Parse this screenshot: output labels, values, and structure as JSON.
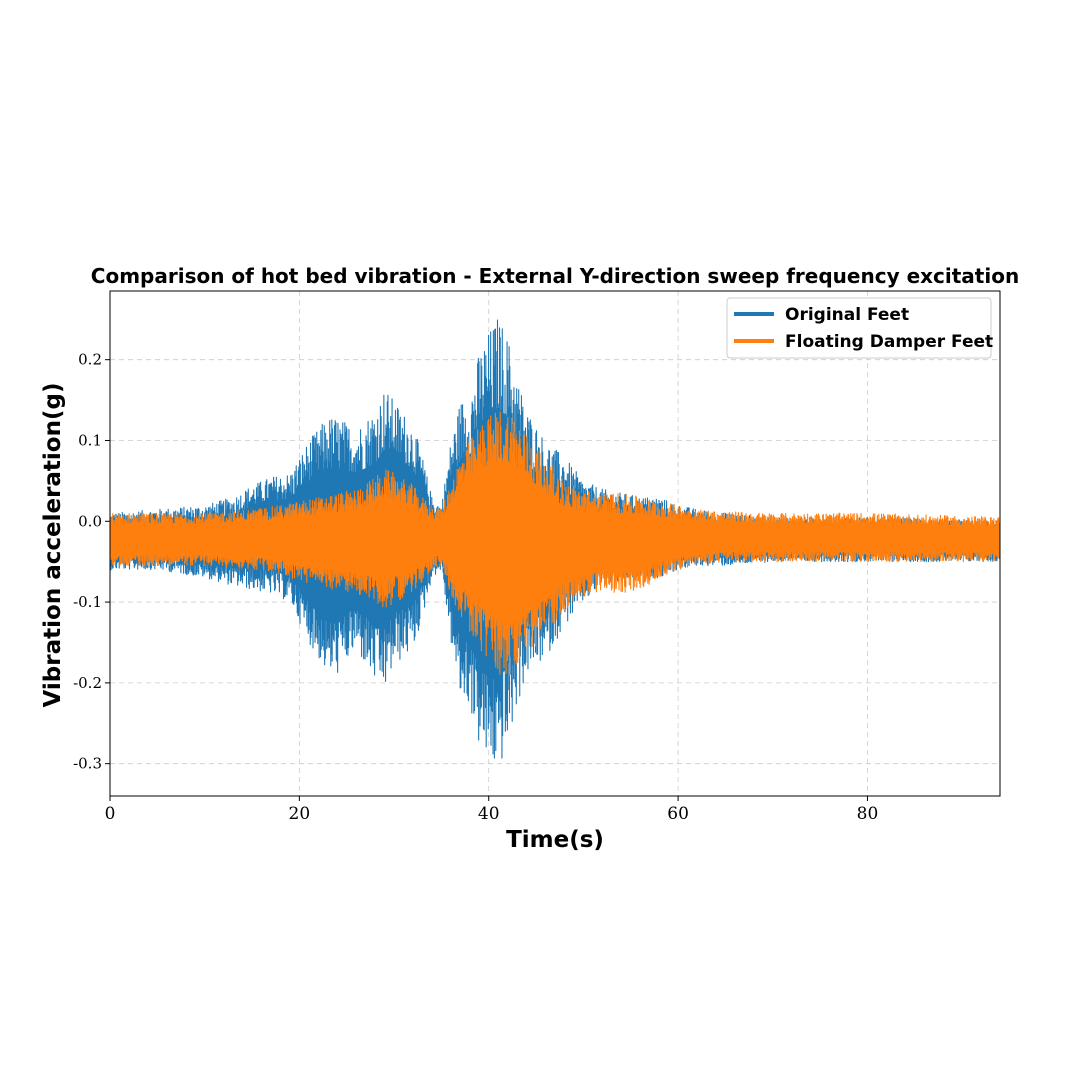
{
  "chart_data": {
    "type": "line",
    "title": "Comparison of hot bed vibration - External Y-direction sweep frequency excitation",
    "xlabel": "Time(s)",
    "ylabel": "Vibration acceleration(g)",
    "xlim": [
      0,
      94
    ],
    "ylim": [
      -0.34,
      0.285
    ],
    "x_ticks": [
      0,
      20,
      40,
      60,
      80
    ],
    "y_ticks": [
      -0.3,
      -0.2,
      -0.1,
      0.0,
      0.1,
      0.2
    ],
    "x_tick_labels": [
      "0",
      "20",
      "40",
      "60",
      "80"
    ],
    "y_tick_labels": [
      "-0.3",
      "-0.2",
      "-0.1",
      "0.0",
      "0.1",
      "0.2"
    ],
    "grid": true,
    "legend_position": "top-right",
    "series": [
      {
        "name": "Original Feet",
        "color": "#1f77b4",
        "envelope": {
          "x": [
            0,
            5,
            10,
            13,
            15,
            17,
            19,
            21,
            23,
            24,
            26,
            28,
            29,
            30,
            32,
            33,
            34,
            35,
            36,
            37,
            38,
            39,
            40,
            41,
            42,
            43,
            44,
            46,
            48,
            50,
            52,
            54,
            56,
            58,
            60,
            62,
            65,
            70,
            80,
            94
          ],
          "upper": [
            0.01,
            0.015,
            0.02,
            0.03,
            0.045,
            0.055,
            0.06,
            0.1,
            0.13,
            0.13,
            0.115,
            0.14,
            0.165,
            0.15,
            0.12,
            0.08,
            0.03,
            0.02,
            0.1,
            0.15,
            0.16,
            0.21,
            0.235,
            0.255,
            0.23,
            0.18,
            0.14,
            0.1,
            0.08,
            0.05,
            0.04,
            0.035,
            0.03,
            0.03,
            0.02,
            0.015,
            0.01,
            0.005,
            0.005,
            0.0
          ],
          "lower": [
            -0.06,
            -0.06,
            -0.07,
            -0.08,
            -0.085,
            -0.09,
            -0.1,
            -0.15,
            -0.19,
            -0.19,
            -0.16,
            -0.2,
            -0.21,
            -0.18,
            -0.16,
            -0.12,
            -0.07,
            -0.06,
            -0.15,
            -0.22,
            -0.23,
            -0.28,
            -0.3,
            -0.31,
            -0.28,
            -0.23,
            -0.19,
            -0.17,
            -0.13,
            -0.1,
            -0.08,
            -0.075,
            -0.07,
            -0.07,
            -0.06,
            -0.055,
            -0.055,
            -0.05,
            -0.05,
            -0.05
          ]
        }
      },
      {
        "name": "Floating Damper Feet",
        "color": "#ff7f0e",
        "envelope": {
          "x": [
            0,
            5,
            10,
            15,
            18,
            20,
            22,
            24,
            26,
            28,
            29,
            30,
            32,
            33,
            34,
            35,
            36,
            37,
            38,
            39,
            40,
            41,
            42,
            43,
            44,
            46,
            48,
            50,
            52,
            54,
            56,
            58,
            60,
            62,
            65,
            70,
            80,
            94
          ],
          "upper": [
            0.01,
            0.01,
            0.01,
            0.015,
            0.02,
            0.025,
            0.03,
            0.035,
            0.04,
            0.055,
            0.065,
            0.06,
            0.045,
            0.03,
            0.02,
            0.015,
            0.05,
            0.08,
            0.1,
            0.12,
            0.13,
            0.14,
            0.14,
            0.13,
            0.11,
            0.08,
            0.05,
            0.04,
            0.035,
            0.035,
            0.03,
            0.025,
            0.02,
            0.015,
            0.012,
            0.01,
            0.01,
            0.005
          ],
          "lower": [
            -0.055,
            -0.055,
            -0.055,
            -0.06,
            -0.065,
            -0.075,
            -0.08,
            -0.085,
            -0.09,
            -0.1,
            -0.11,
            -0.1,
            -0.09,
            -0.075,
            -0.06,
            -0.055,
            -0.09,
            -0.12,
            -0.14,
            -0.16,
            -0.175,
            -0.19,
            -0.195,
            -0.19,
            -0.17,
            -0.14,
            -0.11,
            -0.095,
            -0.085,
            -0.09,
            -0.085,
            -0.07,
            -0.06,
            -0.055,
            -0.05,
            -0.05,
            -0.05,
            -0.05
          ]
        }
      }
    ]
  }
}
